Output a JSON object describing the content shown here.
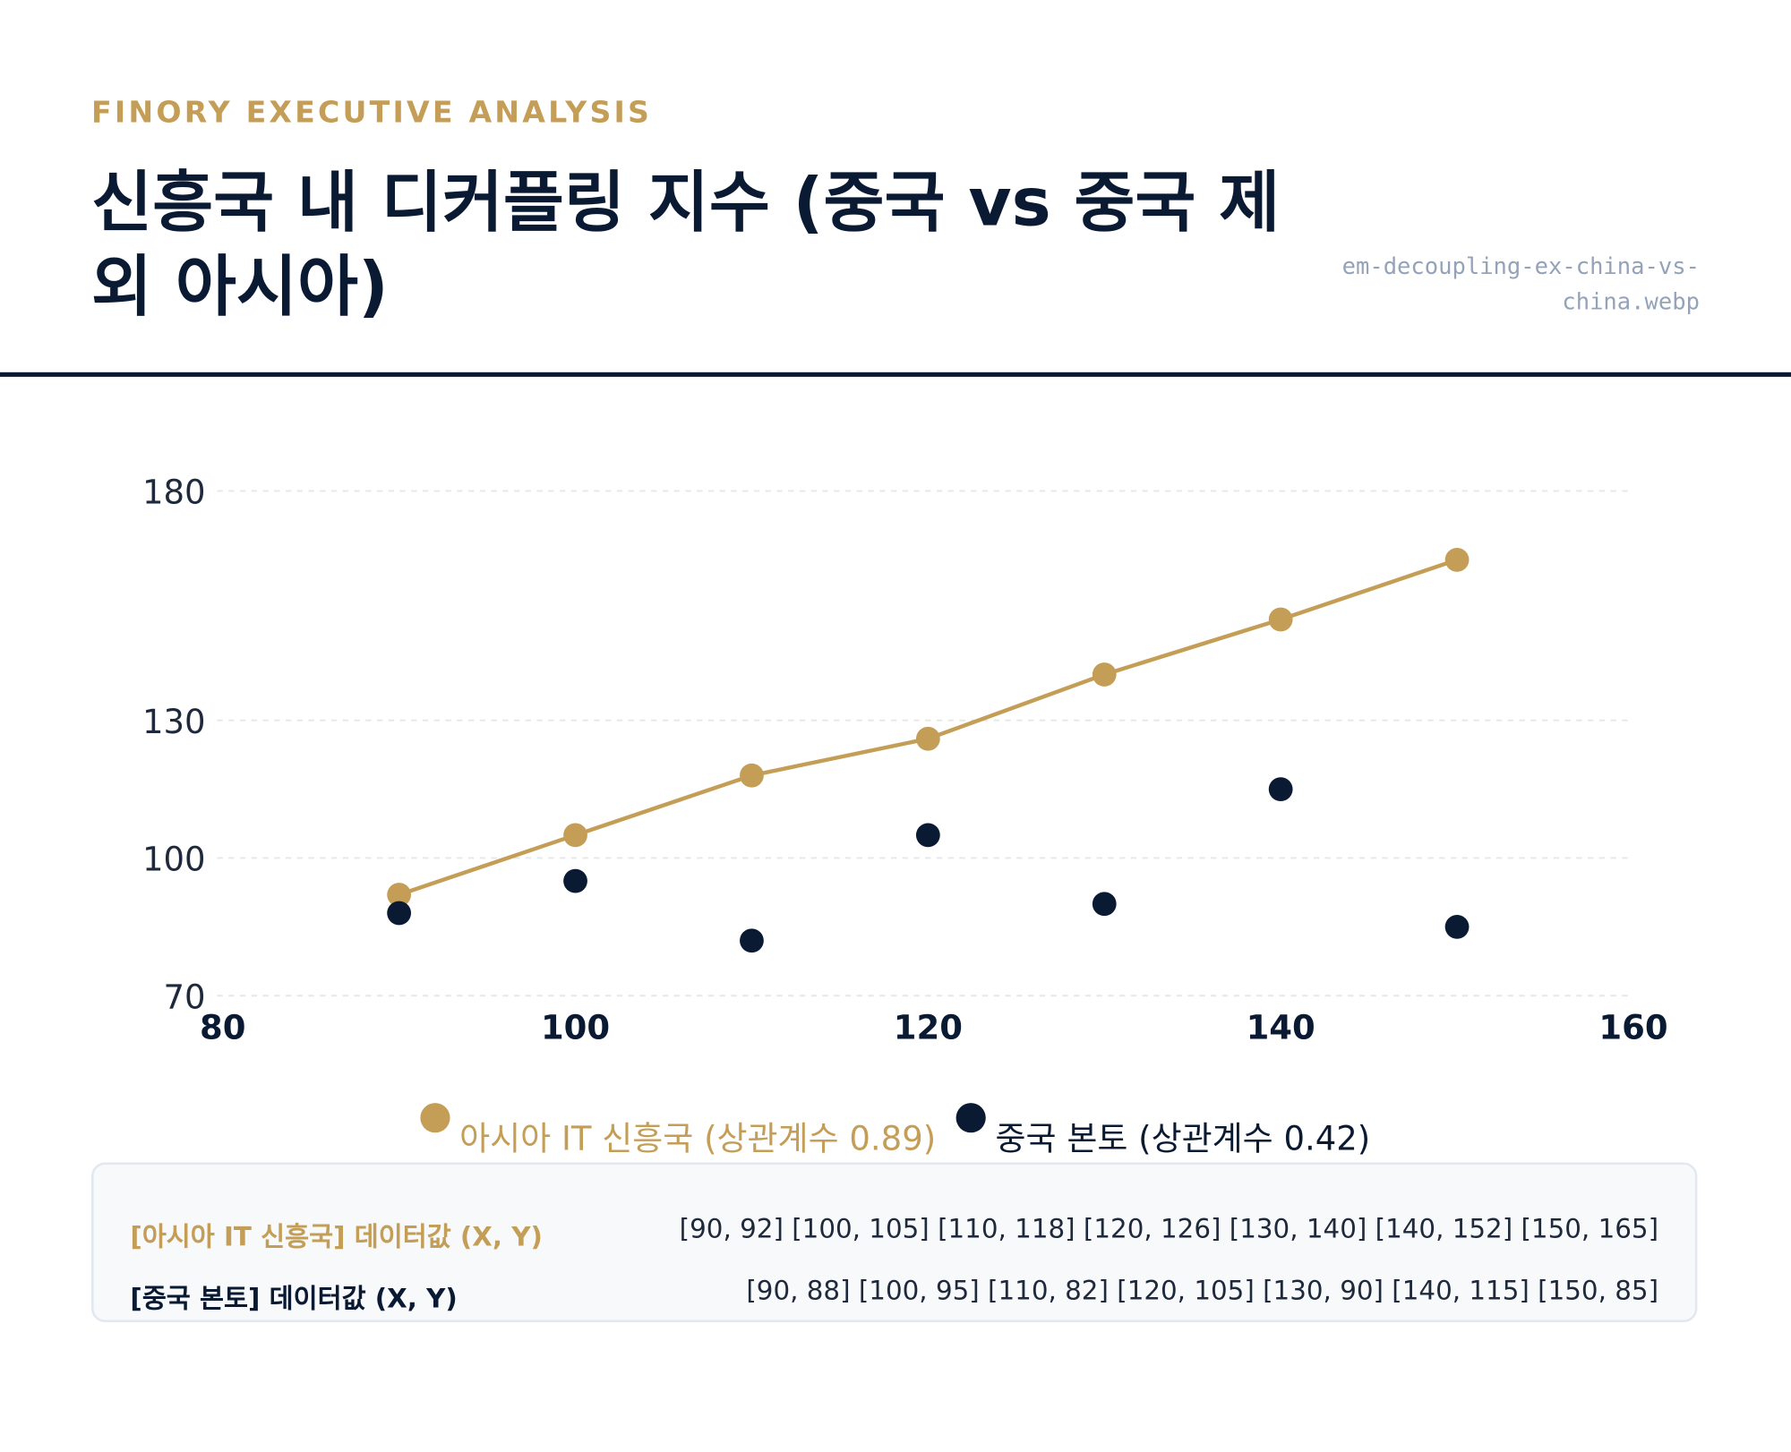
{
  "header": {
    "kicker": "FINORY EXECUTIVE ANALYSIS",
    "title": "신흥국 내 디커플링 지수 (중국 vs 중국 제외 아시아)",
    "filename": "em-decoupling-ex-china-vs-china.webp"
  },
  "colors": {
    "asia": "#C49E57",
    "china": "#0B1A33",
    "grid": "#E5E7EB"
  },
  "chart_data": {
    "type": "line+scatter",
    "xlim": [
      80,
      160
    ],
    "ylim": [
      70,
      180
    ],
    "xticks": [
      80,
      100,
      120,
      140,
      160
    ],
    "yticks": [
      70,
      100,
      130,
      180
    ],
    "grid": "horizontal dashed",
    "legend_position": "bottom",
    "series": [
      {
        "name": "아시아 IT 신흥국 (상관계수 0.89)",
        "style": "line+markers",
        "x": [
          90,
          100,
          110,
          120,
          130,
          140,
          150
        ],
        "y": [
          92,
          105,
          118,
          126,
          140,
          152,
          165
        ]
      },
      {
        "name": "중국 본토 (상관계수 0.42)",
        "style": "markers",
        "x": [
          90,
          100,
          110,
          120,
          130,
          140,
          150
        ],
        "y": [
          88,
          95,
          82,
          105,
          90,
          115,
          85
        ]
      }
    ]
  },
  "table": {
    "rows": [
      {
        "label": "[아시아 IT 신흥국] 데이터값 (X, Y)",
        "values": "[90, 92] [100, 105] [110, 118] [120, 126] [130, 140] [140, 152] [150, 165]"
      },
      {
        "label": "[중국 본토] 데이터값 (X, Y)",
        "values": "[90, 88] [100, 95] [110, 82] [120, 105] [130, 90] [140, 115] [150, 85]"
      }
    ]
  }
}
